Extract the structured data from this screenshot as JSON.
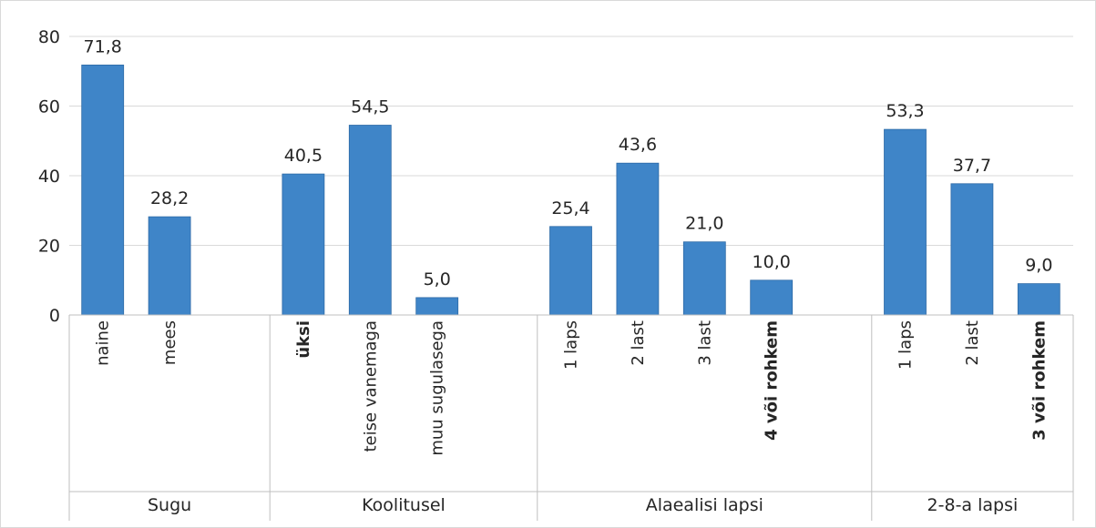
{
  "chart_data": {
    "type": "bar",
    "title": "",
    "xlabel": "",
    "ylabel": "",
    "ylim": [
      0,
      80
    ],
    "yticks": [
      0,
      20,
      40,
      60,
      80
    ],
    "grid": true,
    "legend": "none",
    "bar_color": "#3F85C8",
    "groups": [
      {
        "name": "Sugu",
        "categories": [
          {
            "label": "naine",
            "value": 71.8,
            "value_label": "71,8",
            "bold": false
          },
          {
            "label": "mees",
            "value": 28.2,
            "value_label": "28,2",
            "bold": false
          }
        ]
      },
      {
        "name": "Koolitusel",
        "categories": [
          {
            "label": "üksi",
            "value": 40.5,
            "value_label": "40,5",
            "bold": true
          },
          {
            "label": "teise vanemaga",
            "value": 54.5,
            "value_label": "54,5",
            "bold": false
          },
          {
            "label": "muu sugulasega",
            "value": 5.0,
            "value_label": "5,0",
            "bold": false
          }
        ]
      },
      {
        "name": "Alaealisi lapsi",
        "categories": [
          {
            "label": "1 laps",
            "value": 25.4,
            "value_label": "25,4",
            "bold": false
          },
          {
            "label": "2 last",
            "value": 43.6,
            "value_label": "43,6",
            "bold": false
          },
          {
            "label": "3 last",
            "value": 21.0,
            "value_label": "21,0",
            "bold": false
          },
          {
            "label": "4 või rohkem",
            "value": 10.0,
            "value_label": "10,0",
            "bold": true
          }
        ]
      },
      {
        "name": "2-8-a lapsi",
        "categories": [
          {
            "label": "1 laps",
            "value": 53.3,
            "value_label": "53,3",
            "bold": false
          },
          {
            "label": "2 last",
            "value": 37.7,
            "value_label": "37,7",
            "bold": false
          },
          {
            "label": "3 või rohkem",
            "value": 9.0,
            "value_label": "9,0",
            "bold": true
          }
        ]
      }
    ]
  }
}
